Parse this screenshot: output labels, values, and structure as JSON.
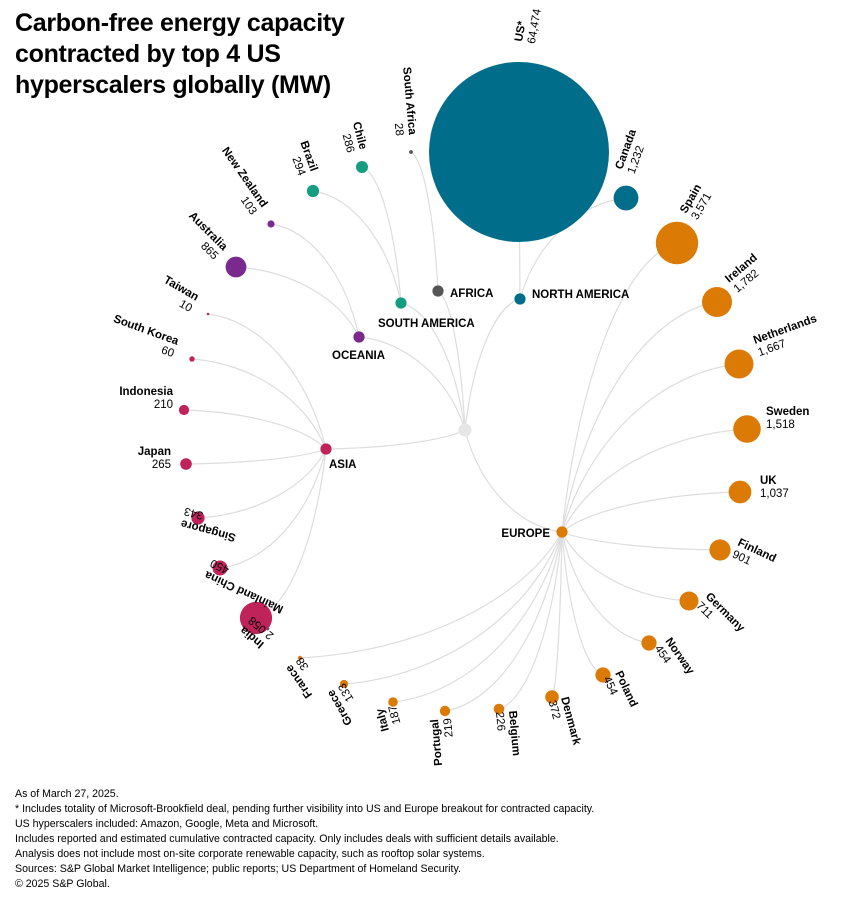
{
  "title": "Carbon-free energy capacity contracted by top 4 US hyperscalers globally (MW)",
  "colors": {
    "north_america": "#006e8a",
    "europe": "#db7b06",
    "asia": "#c0225a",
    "oceania": "#7a2a8c",
    "south_america": "#159d7f",
    "africa": "#555555",
    "link": "#dddddd",
    "root": "#e6e6e6"
  },
  "chart_data": {
    "type": "radial-tree-bubble",
    "unit": "MW",
    "title": "Carbon-free energy capacity contracted by top 4 US hyperscalers globally (MW)",
    "root": "",
    "regions": [
      {
        "id": "north_america",
        "label": "NORTH AMERICA",
        "color": "#006e8a",
        "countries": [
          {
            "name": "US*",
            "value": 64474,
            "value_label": "64,474"
          },
          {
            "name": "Canada",
            "value": 1232,
            "value_label": "1,232"
          }
        ]
      },
      {
        "id": "europe",
        "label": "EUROPE",
        "color": "#db7b06",
        "countries": [
          {
            "name": "Spain",
            "value": 3571,
            "value_label": "3,571"
          },
          {
            "name": "Ireland",
            "value": 1782,
            "value_label": "1,782"
          },
          {
            "name": "Netherlands",
            "value": 1667,
            "value_label": "1,667"
          },
          {
            "name": "Sweden",
            "value": 1518,
            "value_label": "1,518"
          },
          {
            "name": "UK",
            "value": 1037,
            "value_label": "1,037"
          },
          {
            "name": "Finland",
            "value": 901,
            "value_label": "901"
          },
          {
            "name": "Germany",
            "value": 711,
            "value_label": "711"
          },
          {
            "name": "Norway",
            "value": 454,
            "value_label": "454"
          },
          {
            "name": "Poland",
            "value": 454,
            "value_label": "454"
          },
          {
            "name": "Denmark",
            "value": 372,
            "value_label": "372"
          },
          {
            "name": "Belgium",
            "value": 226,
            "value_label": "226"
          },
          {
            "name": "Portugal",
            "value": 219,
            "value_label": "219"
          },
          {
            "name": "Italy",
            "value": 187,
            "value_label": "187"
          },
          {
            "name": "Greece",
            "value": 133,
            "value_label": "133"
          },
          {
            "name": "France",
            "value": 38,
            "value_label": "38"
          }
        ]
      },
      {
        "id": "asia",
        "label": "ASIA",
        "color": "#c0225a",
        "countries": [
          {
            "name": "India",
            "value": 2058,
            "value_label": "2,058"
          },
          {
            "name": "Mainland China",
            "value": 450,
            "value_label": "450"
          },
          {
            "name": "Singapore",
            "value": 343,
            "value_label": "343"
          },
          {
            "name": "Japan",
            "value": 265,
            "value_label": "265"
          },
          {
            "name": "Indonesia",
            "value": 210,
            "value_label": "210"
          },
          {
            "name": "South Korea",
            "value": 60,
            "value_label": "60"
          },
          {
            "name": "Taiwan",
            "value": 10,
            "value_label": "10"
          }
        ]
      },
      {
        "id": "oceania",
        "label": "OCEANIA",
        "color": "#7a2a8c",
        "countries": [
          {
            "name": "Australia",
            "value": 865,
            "value_label": "865"
          },
          {
            "name": "New Zealand",
            "value": 103,
            "value_label": "103"
          }
        ]
      },
      {
        "id": "south_america",
        "label": "SOUTH AMERICA",
        "color": "#159d7f",
        "countries": [
          {
            "name": "Brazil",
            "value": 294,
            "value_label": "294"
          },
          {
            "name": "Chile",
            "value": 286,
            "value_label": "286"
          }
        ]
      },
      {
        "id": "africa",
        "label": "AFRICA",
        "color": "#555555",
        "countries": [
          {
            "name": "South Africa",
            "value": 28,
            "value_label": "28"
          }
        ]
      }
    ]
  },
  "notes": [
    "As of March 27, 2025.",
    "* Includes totality of Microsoft-Brookfield deal, pending further visibility into US and Europe breakout for contracted capacity.",
    "US hyperscalers included: Amazon, Google, Meta and Microsoft.",
    "Includes reported and estimated cumulative contracted capacity. Only includes deals with sufficient details available.",
    "Analysis does not include most on-site corporate renewable capacity, such as rooftop solar systems.",
    "Sources: S&P Global Market Intelligence; public reports; US Department of Homeland Security.",
    "© 2025 S&P Global."
  ]
}
